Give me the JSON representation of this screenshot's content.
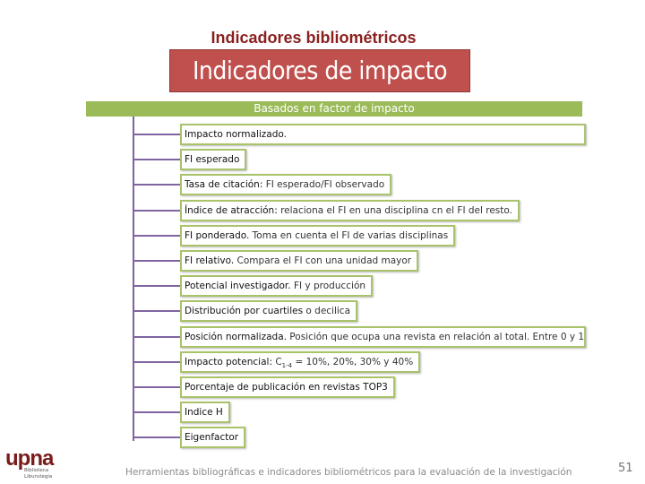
{
  "header": {
    "subtitle": "Indicadores bibliométricos",
    "title": "Indicadores de impacto",
    "band": "Basados en factor de impacto"
  },
  "items": [
    {
      "term": "Impacto normalizado."
    },
    {
      "term": "FI esperado"
    },
    {
      "term": "Tasa de citación:",
      "description": " FI esperado/FI observado"
    },
    {
      "term": "Índice de atracción:",
      "description": " relaciona el FI en una disciplina cn el FI del resto."
    },
    {
      "term": "FI ponderado.",
      "description": " Toma en cuenta el FI de varias disciplinas"
    },
    {
      "term": "FI relativo.",
      "description": " Compara el FI con una unidad mayor"
    },
    {
      "term": "Potencial investigador.",
      "description": " FI y producción"
    },
    {
      "term": "Distribución por cuartiles",
      "description": " o decilica"
    },
    {
      "term": "Posición normalizada.",
      "description": " Posición que ocupa una revista en relación al total. Entre 0 y 1"
    },
    {
      "term": "Impacto potencial:",
      "symbol": "C",
      "subscript": "1-4",
      "description": " = 10%, 20%, 30% y 40%"
    },
    {
      "term": "Porcentaje de publicación en revistas TOP3"
    },
    {
      "term": "Indice H"
    },
    {
      "term": "Eigenfactor"
    }
  ],
  "footer": {
    "logo": "upna",
    "library": "Biblioteca",
    "library_eu": "Liburutegia",
    "text": "Herramientas bibliográficas e indicadores bibliométricos para la evaluación de la investigación",
    "page": "51"
  }
}
